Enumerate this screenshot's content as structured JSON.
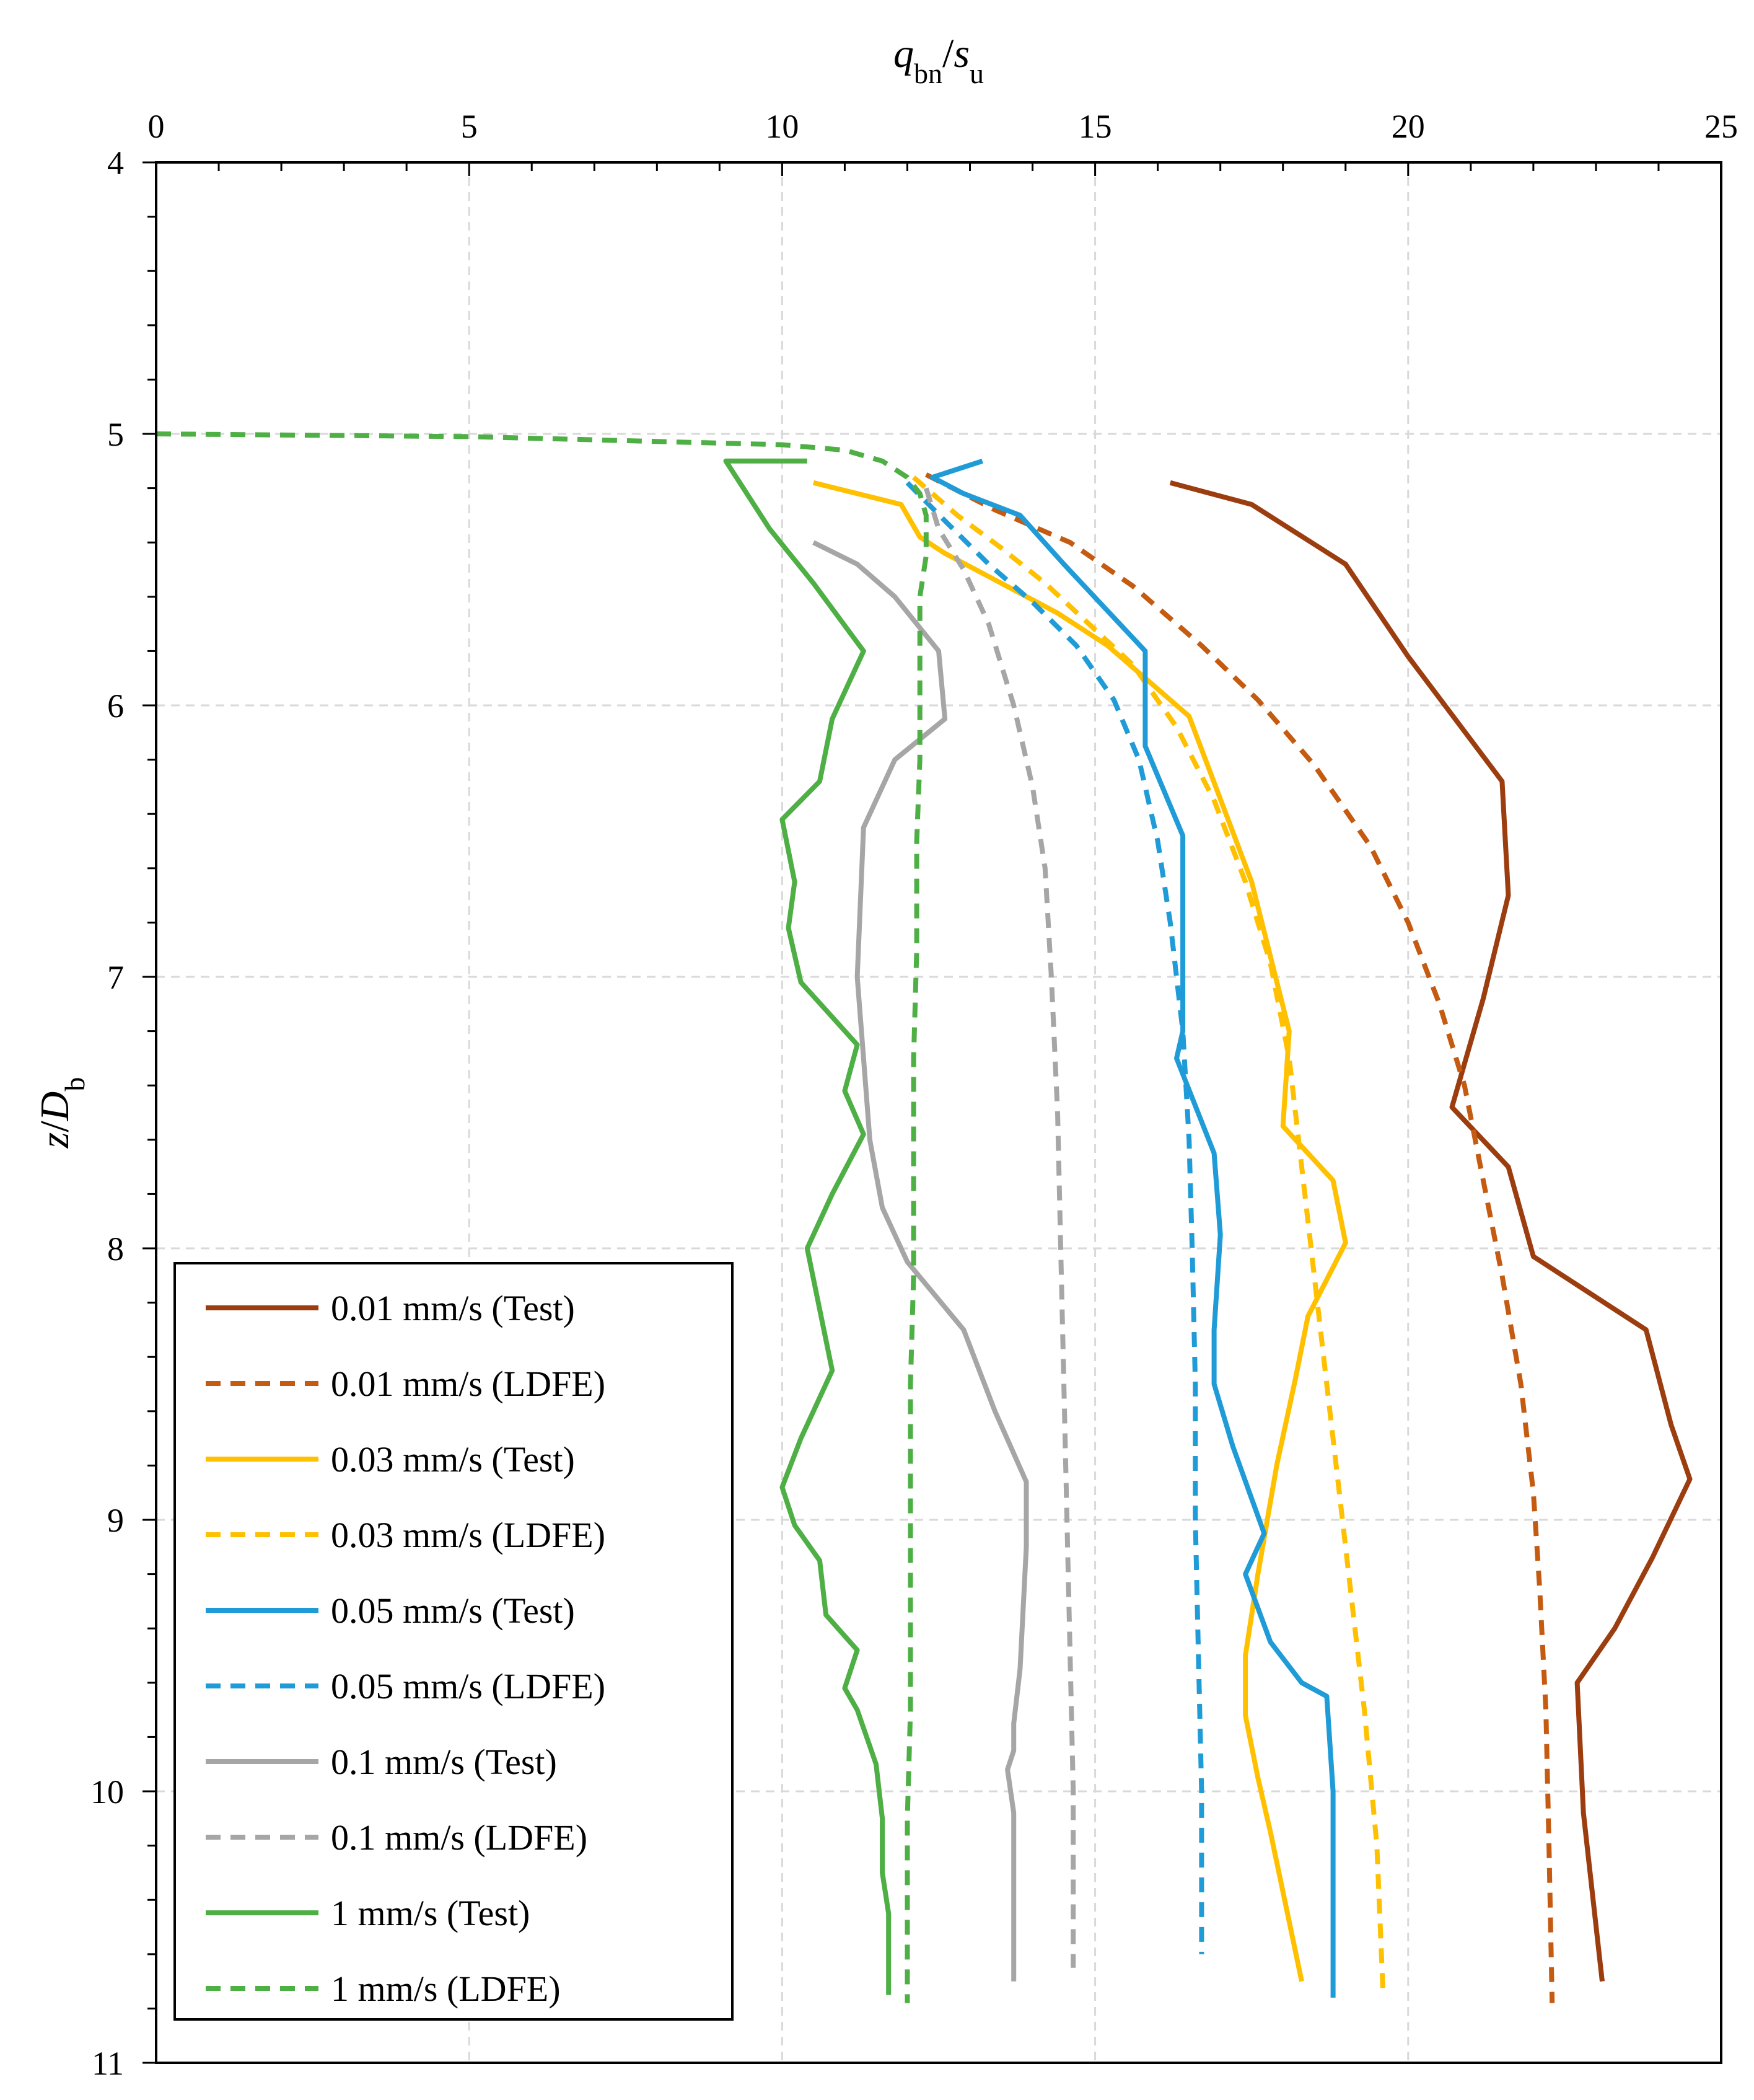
{
  "chart_data": {
    "type": "line",
    "title": "",
    "xlabel": {
      "main": "q",
      "sub1": "bn",
      "slash": "/",
      "main2": "s",
      "sub2": "u"
    },
    "ylabel": {
      "main": "z",
      "slash": "/",
      "main2": "D",
      "sub": "b"
    },
    "xlim": [
      0,
      25
    ],
    "ylim": [
      4,
      11
    ],
    "x_axis_position": "top",
    "y_inverted": true,
    "grid": true,
    "xticks": [
      0,
      5,
      10,
      15,
      20,
      25
    ],
    "xtick_labels": [
      "0",
      "5",
      "10",
      "15",
      "20",
      "25"
    ],
    "yticks": [
      4,
      5,
      6,
      7,
      8,
      9,
      10,
      11
    ],
    "ytick_labels": [
      "4",
      "5",
      "6",
      "7",
      "8",
      "9",
      "10",
      "11"
    ],
    "legend_position": "bottom-left",
    "series": [
      {
        "name": "0.01 mm/s (Test)",
        "color": "#9C3D0F",
        "style": "solid",
        "points": [
          [
            16.2,
            5.18
          ],
          [
            17.5,
            5.26
          ],
          [
            19.0,
            5.48
          ],
          [
            20.0,
            5.82
          ],
          [
            21.5,
            6.28
          ],
          [
            21.6,
            6.7
          ],
          [
            21.2,
            7.08
          ],
          [
            20.7,
            7.48
          ],
          [
            21.6,
            7.7
          ],
          [
            22.0,
            8.03
          ],
          [
            23.8,
            8.3
          ],
          [
            24.2,
            8.65
          ],
          [
            24.5,
            8.85
          ],
          [
            23.9,
            9.14
          ],
          [
            23.3,
            9.4
          ],
          [
            22.7,
            9.6
          ],
          [
            22.8,
            10.08
          ],
          [
            23.1,
            10.7
          ]
        ]
      },
      {
        "name": "0.01 mm/s (LDFE)",
        "color": "#C55A11",
        "style": "dashed",
        "points": [
          [
            12.3,
            5.15
          ],
          [
            13.4,
            5.28
          ],
          [
            14.6,
            5.4
          ],
          [
            15.6,
            5.56
          ],
          [
            16.7,
            5.78
          ],
          [
            17.6,
            5.98
          ],
          [
            18.5,
            6.22
          ],
          [
            19.4,
            6.52
          ],
          [
            20.0,
            6.8
          ],
          [
            20.5,
            7.1
          ],
          [
            20.9,
            7.4
          ],
          [
            21.2,
            7.75
          ],
          [
            21.5,
            8.1
          ],
          [
            21.8,
            8.5
          ],
          [
            22.0,
            8.9
          ],
          [
            22.1,
            9.25
          ],
          [
            22.2,
            9.7
          ],
          [
            22.25,
            10.2
          ],
          [
            22.3,
            10.78
          ]
        ]
      },
      {
        "name": "0.03 mm/s (Test)",
        "color": "#FFC000",
        "style": "solid",
        "points": [
          [
            10.5,
            5.18
          ],
          [
            11.9,
            5.26
          ],
          [
            12.2,
            5.38
          ],
          [
            12.6,
            5.44
          ],
          [
            13.5,
            5.55
          ],
          [
            14.4,
            5.66
          ],
          [
            15.2,
            5.78
          ],
          [
            16.5,
            6.04
          ],
          [
            17.5,
            6.65
          ],
          [
            18.1,
            7.2
          ],
          [
            18.0,
            7.55
          ],
          [
            18.8,
            7.75
          ],
          [
            19.0,
            7.98
          ],
          [
            18.4,
            8.25
          ],
          [
            18.2,
            8.48
          ],
          [
            17.9,
            8.8
          ],
          [
            17.6,
            9.2
          ],
          [
            17.4,
            9.5
          ],
          [
            17.4,
            9.72
          ],
          [
            17.6,
            9.95
          ],
          [
            17.8,
            10.15
          ],
          [
            18.3,
            10.7
          ]
        ]
      },
      {
        "name": "0.03 mm/s (LDFE)",
        "color": "#FFC000",
        "style": "dashed",
        "points": [
          [
            12.1,
            5.16
          ],
          [
            12.8,
            5.3
          ],
          [
            13.5,
            5.42
          ],
          [
            14.2,
            5.55
          ],
          [
            14.9,
            5.7
          ],
          [
            15.6,
            5.85
          ],
          [
            16.3,
            6.08
          ],
          [
            16.9,
            6.35
          ],
          [
            17.4,
            6.65
          ],
          [
            17.8,
            6.95
          ],
          [
            18.1,
            7.3
          ],
          [
            18.3,
            7.7
          ],
          [
            18.5,
            8.1
          ],
          [
            18.7,
            8.5
          ],
          [
            18.9,
            8.9
          ],
          [
            19.1,
            9.3
          ],
          [
            19.3,
            9.7
          ],
          [
            19.5,
            10.2
          ],
          [
            19.6,
            10.75
          ]
        ]
      },
      {
        "name": "0.05 mm/s (Test)",
        "color": "#1F9BD7",
        "style": "solid",
        "points": [
          [
            13.2,
            5.1
          ],
          [
            12.4,
            5.16
          ],
          [
            12.9,
            5.22
          ],
          [
            13.8,
            5.3
          ],
          [
            14.5,
            5.48
          ],
          [
            15.8,
            5.8
          ],
          [
            15.8,
            6.0
          ],
          [
            15.8,
            6.15
          ],
          [
            16.4,
            6.48
          ],
          [
            16.4,
            7.0
          ],
          [
            16.4,
            7.2
          ],
          [
            16.3,
            7.3
          ],
          [
            16.9,
            7.65
          ],
          [
            17.0,
            7.95
          ],
          [
            16.9,
            8.3
          ],
          [
            16.9,
            8.5
          ],
          [
            17.2,
            8.73
          ],
          [
            17.7,
            9.05
          ],
          [
            17.4,
            9.2
          ],
          [
            17.8,
            9.45
          ],
          [
            18.3,
            9.6
          ],
          [
            18.7,
            9.65
          ],
          [
            18.8,
            10.0
          ],
          [
            18.8,
            10.35
          ],
          [
            18.8,
            10.76
          ]
        ]
      },
      {
        "name": "0.05 mm/s (LDFE)",
        "color": "#1F9BD7",
        "style": "dashed",
        "points": [
          [
            12.0,
            5.18
          ],
          [
            12.6,
            5.32
          ],
          [
            13.3,
            5.48
          ],
          [
            14.0,
            5.62
          ],
          [
            14.7,
            5.78
          ],
          [
            15.3,
            5.98
          ],
          [
            15.7,
            6.2
          ],
          [
            16.0,
            6.5
          ],
          [
            16.2,
            6.8
          ],
          [
            16.4,
            7.2
          ],
          [
            16.5,
            7.6
          ],
          [
            16.55,
            8.0
          ],
          [
            16.6,
            8.5
          ],
          [
            16.6,
            9.0
          ],
          [
            16.65,
            9.5
          ],
          [
            16.7,
            10.0
          ],
          [
            16.7,
            10.6
          ]
        ]
      },
      {
        "name": "0.1 mm/s (Test)",
        "color": "#A6A6A6",
        "style": "solid",
        "points": [
          [
            10.5,
            5.4
          ],
          [
            11.2,
            5.48
          ],
          [
            11.8,
            5.6
          ],
          [
            12.5,
            5.8
          ],
          [
            12.6,
            6.05
          ],
          [
            11.8,
            6.2
          ],
          [
            11.3,
            6.45
          ],
          [
            11.2,
            7.0
          ],
          [
            11.3,
            7.3
          ],
          [
            11.4,
            7.6
          ],
          [
            11.6,
            7.85
          ],
          [
            12.0,
            8.05
          ],
          [
            12.9,
            8.3
          ],
          [
            13.4,
            8.6
          ],
          [
            13.9,
            8.86
          ],
          [
            13.9,
            9.1
          ],
          [
            13.8,
            9.55
          ],
          [
            13.7,
            9.75
          ],
          [
            13.7,
            9.85
          ],
          [
            13.6,
            9.92
          ],
          [
            13.7,
            10.08
          ],
          [
            13.7,
            10.35
          ],
          [
            13.7,
            10.7
          ]
        ]
      },
      {
        "name": "0.1 mm/s (LDFE)",
        "color": "#A6A6A6",
        "style": "dashed",
        "points": [
          [
            12.3,
            5.2
          ],
          [
            12.5,
            5.35
          ],
          [
            12.9,
            5.5
          ],
          [
            13.3,
            5.7
          ],
          [
            13.7,
            6.0
          ],
          [
            14.0,
            6.3
          ],
          [
            14.2,
            6.6
          ],
          [
            14.3,
            7.0
          ],
          [
            14.4,
            7.5
          ],
          [
            14.45,
            8.0
          ],
          [
            14.5,
            8.5
          ],
          [
            14.55,
            9.0
          ],
          [
            14.6,
            9.5
          ],
          [
            14.65,
            10.0
          ],
          [
            14.65,
            10.65
          ]
        ]
      },
      {
        "name": "1 mm/s (Test)",
        "color": "#4EAF45",
        "style": "solid",
        "points": [
          [
            10.4,
            5.1
          ],
          [
            9.1,
            5.1
          ],
          [
            9.8,
            5.35
          ],
          [
            10.5,
            5.55
          ],
          [
            11.3,
            5.8
          ],
          [
            10.8,
            6.05
          ],
          [
            10.6,
            6.28
          ],
          [
            10.0,
            6.42
          ],
          [
            10.2,
            6.65
          ],
          [
            10.1,
            6.82
          ],
          [
            10.3,
            7.02
          ],
          [
            11.2,
            7.25
          ],
          [
            11.0,
            7.42
          ],
          [
            11.3,
            7.58
          ],
          [
            10.8,
            7.8
          ],
          [
            10.4,
            8.0
          ],
          [
            10.8,
            8.45
          ],
          [
            10.5,
            8.6
          ],
          [
            10.3,
            8.7
          ],
          [
            10.0,
            8.88
          ],
          [
            10.2,
            9.02
          ],
          [
            10.6,
            9.15
          ],
          [
            10.7,
            9.35
          ],
          [
            11.2,
            9.48
          ],
          [
            11.0,
            9.62
          ],
          [
            11.2,
            9.7
          ],
          [
            11.5,
            9.9
          ],
          [
            11.6,
            10.1
          ],
          [
            11.6,
            10.3
          ],
          [
            11.7,
            10.45
          ],
          [
            11.7,
            10.75
          ]
        ]
      },
      {
        "name": "1 mm/s (LDFE)",
        "color": "#4EAF45",
        "style": "dashed",
        "points": [
          [
            0,
            5.0
          ],
          [
            5.0,
            5.01
          ],
          [
            10.0,
            5.04
          ],
          [
            11.0,
            5.06
          ],
          [
            11.6,
            5.1
          ],
          [
            12.0,
            5.16
          ],
          [
            12.2,
            5.22
          ],
          [
            12.3,
            5.3
          ],
          [
            12.3,
            5.45
          ],
          [
            12.2,
            5.6
          ],
          [
            12.2,
            5.9
          ],
          [
            12.2,
            6.2
          ],
          [
            12.15,
            6.5
          ],
          [
            12.15,
            6.9
          ],
          [
            12.1,
            7.3
          ],
          [
            12.1,
            7.7
          ],
          [
            12.1,
            8.1
          ],
          [
            12.05,
            8.5
          ],
          [
            12.05,
            8.9
          ],
          [
            12.05,
            9.3
          ],
          [
            12.05,
            9.7
          ],
          [
            12.0,
            10.1
          ],
          [
            12.0,
            10.5
          ],
          [
            12.0,
            10.78
          ]
        ]
      }
    ]
  }
}
